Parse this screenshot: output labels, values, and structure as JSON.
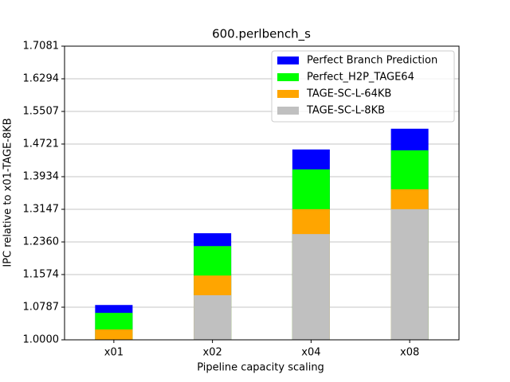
{
  "chart_data": {
    "type": "bar",
    "title": "600.perlbench_s",
    "x_label": "Pipeline capacity scaling",
    "y_label": "IPC relative to x01-TAGE-8KB",
    "categories": [
      "x01",
      "x02",
      "x04",
      "x08"
    ],
    "series": [
      {
        "name": "Perfect Branch Prediction",
        "color": "#0000ff",
        "values": [
          1.084,
          1.257,
          1.459,
          1.509
        ]
      },
      {
        "name": "Perfect_H2P_TAGE64",
        "color": "#00ff00",
        "values": [
          1.065,
          1.226,
          1.411,
          1.457
        ]
      },
      {
        "name": "TAGE-SC-L-64KB",
        "color": "#ffa500",
        "values": [
          1.025,
          1.155,
          1.315,
          1.363
        ]
      },
      {
        "name": "TAGE-SC-L-8KB",
        "color": "#c0c0c0",
        "values": [
          1.0,
          1.1075,
          1.255,
          1.315
        ]
      }
    ],
    "ylim": [
      1.0,
      1.7081
    ],
    "yticks": [
      {
        "value": 1.0,
        "label": "1.0000"
      },
      1.0787,
      1.1574,
      {
        "value": 1.236,
        "label": "1.2360"
      },
      1.3147,
      1.3934,
      1.4721,
      1.5507,
      1.6294,
      1.7081
    ],
    "grid": true,
    "legend": "upper right"
  }
}
